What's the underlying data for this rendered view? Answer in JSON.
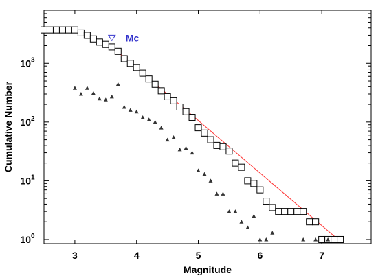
{
  "chart_data": {
    "type": "scatter",
    "xlabel": "Magnitude",
    "ylabel": "Cumulative Number",
    "xlim": [
      2.5,
      7.8
    ],
    "ylim": [
      0.85,
      8000
    ],
    "yscale": "log",
    "x_ticks": [
      3,
      4,
      5,
      6,
      7
    ],
    "x_tick_labels": [
      "3",
      "4",
      "5",
      "6",
      "7"
    ],
    "y_ticks": [
      1,
      10,
      100,
      1000
    ],
    "y_tick_labels": [
      {
        "base": "10",
        "exp": "0"
      },
      {
        "base": "10",
        "exp": "1"
      },
      {
        "base": "10",
        "exp": "2"
      },
      {
        "base": "10",
        "exp": "3"
      }
    ],
    "grid": false,
    "series": [
      {
        "marker": "square",
        "color": "#000000",
        "points": [
          [
            2.5,
            3700
          ],
          [
            2.6,
            3700
          ],
          [
            2.7,
            3700
          ],
          [
            2.8,
            3700
          ],
          [
            2.9,
            3700
          ],
          [
            3.0,
            3700
          ],
          [
            3.1,
            3300
          ],
          [
            3.2,
            3000
          ],
          [
            3.3,
            2600
          ],
          [
            3.4,
            2300
          ],
          [
            3.5,
            2100
          ],
          [
            3.6,
            1900
          ],
          [
            3.7,
            1600
          ],
          [
            3.8,
            1200
          ],
          [
            3.9,
            1000
          ],
          [
            4.0,
            850
          ],
          [
            4.1,
            680
          ],
          [
            4.2,
            540
          ],
          [
            4.3,
            440
          ],
          [
            4.4,
            340
          ],
          [
            4.5,
            270
          ],
          [
            4.6,
            230
          ],
          [
            4.7,
            180
          ],
          [
            4.8,
            150
          ],
          [
            4.9,
            120
          ],
          [
            5.0,
            80
          ],
          [
            5.1,
            65
          ],
          [
            5.2,
            50
          ],
          [
            5.3,
            40
          ],
          [
            5.4,
            38
          ],
          [
            5.5,
            32
          ],
          [
            5.6,
            20
          ],
          [
            5.7,
            17
          ],
          [
            5.8,
            10
          ],
          [
            5.9,
            9
          ],
          [
            6.0,
            7
          ],
          [
            6.1,
            4.5
          ],
          [
            6.2,
            3.5
          ],
          [
            6.3,
            3
          ],
          [
            6.4,
            3
          ],
          [
            6.5,
            3
          ],
          [
            6.6,
            3
          ],
          [
            6.7,
            3
          ],
          [
            6.8,
            2
          ],
          [
            6.9,
            2
          ],
          [
            7.0,
            1
          ],
          [
            7.1,
            1
          ],
          [
            7.2,
            1
          ],
          [
            7.3,
            1
          ]
        ]
      },
      {
        "marker": "triangle",
        "color": "#333333",
        "points": [
          [
            3.0,
            380
          ],
          [
            3.1,
            300
          ],
          [
            3.2,
            380
          ],
          [
            3.3,
            310
          ],
          [
            3.4,
            250
          ],
          [
            3.5,
            240
          ],
          [
            3.6,
            270
          ],
          [
            3.7,
            440
          ],
          [
            3.8,
            180
          ],
          [
            3.9,
            160
          ],
          [
            4.0,
            150
          ],
          [
            4.1,
            120
          ],
          [
            4.2,
            110
          ],
          [
            4.3,
            100
          ],
          [
            4.4,
            80
          ],
          [
            4.5,
            50
          ],
          [
            4.6,
            55
          ],
          [
            4.7,
            34
          ],
          [
            4.8,
            36
          ],
          [
            4.9,
            30
          ],
          [
            5.0,
            15
          ],
          [
            5.1,
            13
          ],
          [
            5.2,
            10
          ],
          [
            5.3,
            6
          ],
          [
            5.4,
            6
          ],
          [
            5.5,
            3
          ],
          [
            5.6,
            3
          ],
          [
            5.7,
            2
          ],
          [
            5.8,
            1.6
          ],
          [
            5.9,
            2.5
          ],
          [
            6.0,
            1
          ],
          [
            6.1,
            1
          ],
          [
            6.2,
            1.3
          ],
          [
            6.7,
            1
          ],
          [
            6.9,
            1
          ],
          [
            7.1,
            1
          ]
        ]
      }
    ],
    "fit_line": {
      "color": "#ff3333",
      "points": [
        [
          3.6,
          1900
        ],
        [
          7.3,
          0.93
        ]
      ]
    },
    "mc_marker": {
      "label": "Mc",
      "x": 3.6,
      "y": 2700,
      "color": "#3333cc"
    }
  }
}
